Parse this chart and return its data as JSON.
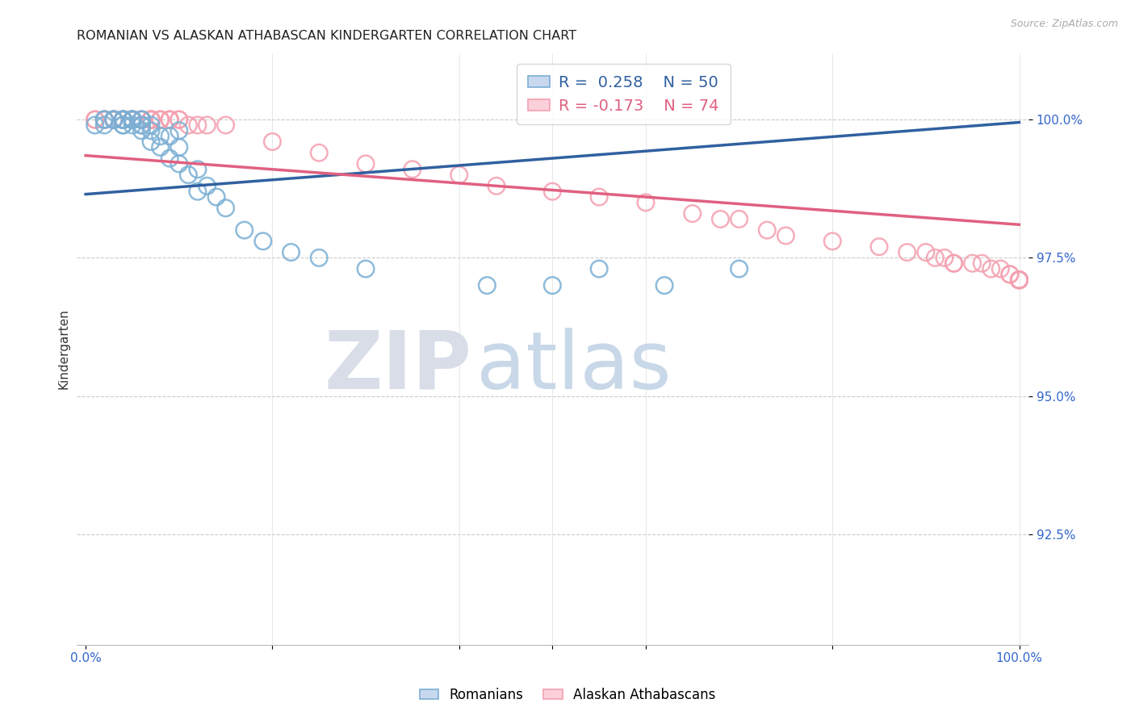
{
  "title": "ROMANIAN VS ALASKAN ATHABASCAN KINDERGARTEN CORRELATION CHART",
  "source": "Source: ZipAtlas.com",
  "ylabel": "Kindergarten",
  "ytick_labels": [
    "100.0%",
    "97.5%",
    "95.0%",
    "92.5%"
  ],
  "ytick_values": [
    1.0,
    0.975,
    0.95,
    0.925
  ],
  "xlim": [
    -0.01,
    1.01
  ],
  "ylim": [
    0.905,
    1.012
  ],
  "watermark_zip": "ZIP",
  "watermark_atlas": "atlas",
  "blue_color": "#7bafd4",
  "pink_color": "#f4a0b0",
  "blue_line_color": "#3060a0",
  "pink_line_color": "#e06080",
  "background_color": "#ffffff",
  "blue_trend_start_y": 0.9865,
  "blue_trend_end_y": 0.9995,
  "pink_trend_start_y": 0.9935,
  "pink_trend_end_y": 0.981,
  "rom_x": [
    0.01,
    0.02,
    0.02,
    0.02,
    0.03,
    0.03,
    0.03,
    0.04,
    0.04,
    0.04,
    0.04,
    0.04,
    0.04,
    0.05,
    0.05,
    0.05,
    0.05,
    0.05,
    0.05,
    0.06,
    0.06,
    0.06,
    0.06,
    0.06,
    0.07,
    0.07,
    0.07,
    0.08,
    0.08,
    0.09,
    0.09,
    0.1,
    0.1,
    0.1,
    0.11,
    0.12,
    0.12,
    0.13,
    0.14,
    0.15,
    0.17,
    0.19,
    0.22,
    0.25,
    0.3,
    0.43,
    0.5,
    0.55,
    0.62,
    0.7
  ],
  "rom_y": [
    0.999,
    0.999,
    1.0,
    1.0,
    1.0,
    1.0,
    1.0,
    0.999,
    0.999,
    1.0,
    1.0,
    1.0,
    1.0,
    0.999,
    1.0,
    1.0,
    1.0,
    1.0,
    1.0,
    0.998,
    0.999,
    0.999,
    1.0,
    1.0,
    0.996,
    0.998,
    0.999,
    0.995,
    0.997,
    0.993,
    0.997,
    0.992,
    0.995,
    0.998,
    0.99,
    0.987,
    0.991,
    0.988,
    0.986,
    0.984,
    0.98,
    0.978,
    0.976,
    0.975,
    0.973,
    0.97,
    0.97,
    0.973,
    0.97,
    0.973
  ],
  "ath_x": [
    0.01,
    0.01,
    0.02,
    0.02,
    0.02,
    0.03,
    0.03,
    0.03,
    0.03,
    0.04,
    0.04,
    0.04,
    0.04,
    0.04,
    0.05,
    0.05,
    0.05,
    0.05,
    0.05,
    0.05,
    0.05,
    0.06,
    0.06,
    0.07,
    0.07,
    0.07,
    0.07,
    0.07,
    0.08,
    0.08,
    0.08,
    0.09,
    0.09,
    0.09,
    0.1,
    0.1,
    0.11,
    0.12,
    0.13,
    0.15,
    0.2,
    0.25,
    0.3,
    0.35,
    0.4,
    0.44,
    0.5,
    0.55,
    0.6,
    0.65,
    0.68,
    0.7,
    0.73,
    0.75,
    0.8,
    0.85,
    0.88,
    0.9,
    0.91,
    0.92,
    0.93,
    0.93,
    0.95,
    0.96,
    0.97,
    0.98,
    0.99,
    0.99,
    1.0,
    1.0,
    1.0,
    1.0,
    1.0,
    1.0
  ],
  "ath_y": [
    1.0,
    1.0,
    1.0,
    1.0,
    1.0,
    1.0,
    1.0,
    1.0,
    1.0,
    1.0,
    1.0,
    1.0,
    1.0,
    1.0,
    1.0,
    1.0,
    1.0,
    1.0,
    1.0,
    1.0,
    1.0,
    1.0,
    1.0,
    1.0,
    1.0,
    1.0,
    1.0,
    1.0,
    1.0,
    1.0,
    1.0,
    1.0,
    1.0,
    1.0,
    1.0,
    1.0,
    0.999,
    0.999,
    0.999,
    0.999,
    0.996,
    0.994,
    0.992,
    0.991,
    0.99,
    0.988,
    0.987,
    0.986,
    0.985,
    0.983,
    0.982,
    0.982,
    0.98,
    0.979,
    0.978,
    0.977,
    0.976,
    0.976,
    0.975,
    0.975,
    0.974,
    0.974,
    0.974,
    0.974,
    0.973,
    0.973,
    0.972,
    0.972,
    0.971,
    0.971,
    0.971,
    0.971,
    0.971,
    0.971
  ]
}
